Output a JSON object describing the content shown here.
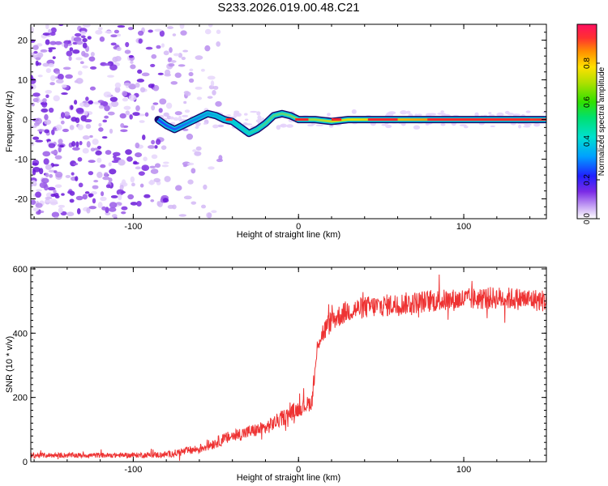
{
  "title": "S233.2026.019.00.48.C21",
  "chart_data": [
    {
      "type": "heatmap",
      "name": "spectrogram",
      "xlabel": "Height of straight line (km)",
      "ylabel": "Frequency (Hz)",
      "xlim": [
        -162,
        150
      ],
      "ylim": [
        -25,
        24
      ],
      "x_ticks": [
        -100,
        0,
        100
      ],
      "y_ticks": [
        -20,
        -10,
        0,
        10,
        20
      ],
      "noise_region_x": [
        -162,
        -65
      ],
      "ridge": [
        [
          -85,
          0
        ],
        [
          -80,
          -1.5
        ],
        [
          -75,
          -2.5
        ],
        [
          -70,
          -1.5
        ],
        [
          -65,
          -0.5
        ],
        [
          -60,
          0.5
        ],
        [
          -55,
          1.5
        ],
        [
          -50,
          1
        ],
        [
          -45,
          0
        ],
        [
          -40,
          -0.5
        ],
        [
          -35,
          -2
        ],
        [
          -30,
          -3.5
        ],
        [
          -25,
          -2.5
        ],
        [
          -20,
          -1
        ],
        [
          -15,
          1
        ],
        [
          -10,
          1.5
        ],
        [
          -5,
          1
        ],
        [
          0,
          0
        ],
        [
          10,
          0
        ],
        [
          20,
          -0.5
        ],
        [
          30,
          0
        ],
        [
          40,
          0
        ],
        [
          60,
          0
        ],
        [
          80,
          0
        ],
        [
          100,
          0
        ],
        [
          120,
          0
        ],
        [
          140,
          0
        ],
        [
          150,
          0
        ]
      ],
      "colorbar": {
        "label": "Normalized spectral amplitude",
        "range": [
          0,
          1
        ],
        "ticks": [
          "0.0",
          "0.2",
          "0.4",
          "0.6",
          "0.8"
        ]
      }
    },
    {
      "type": "line",
      "name": "snr",
      "xlabel": "Height of straight line (km)",
      "ylabel": "SNR (10 * v/v)",
      "xlim": [
        -162,
        150
      ],
      "ylim": [
        0,
        605
      ],
      "x_ticks": [
        -100,
        0,
        100
      ],
      "y_ticks": [
        0,
        200,
        400,
        600
      ],
      "color": "#ee3333",
      "trend_x": [
        -162,
        -100,
        -80,
        -60,
        -40,
        -20,
        -10,
        0,
        8,
        10,
        12,
        20,
        30,
        40,
        60,
        80,
        100,
        120,
        140,
        150
      ],
      "trend_y": [
        20,
        20,
        22,
        40,
        80,
        105,
        135,
        165,
        185,
        280,
        380,
        440,
        470,
        480,
        490,
        500,
        505,
        510,
        505,
        500
      ],
      "noise_amplitude": [
        8,
        8,
        10,
        15,
        20,
        22,
        25,
        25,
        25,
        30,
        35,
        35,
        35,
        35,
        35,
        35,
        35,
        35,
        35,
        35
      ],
      "line_colors": {
        "axis": "#000000"
      }
    }
  ]
}
